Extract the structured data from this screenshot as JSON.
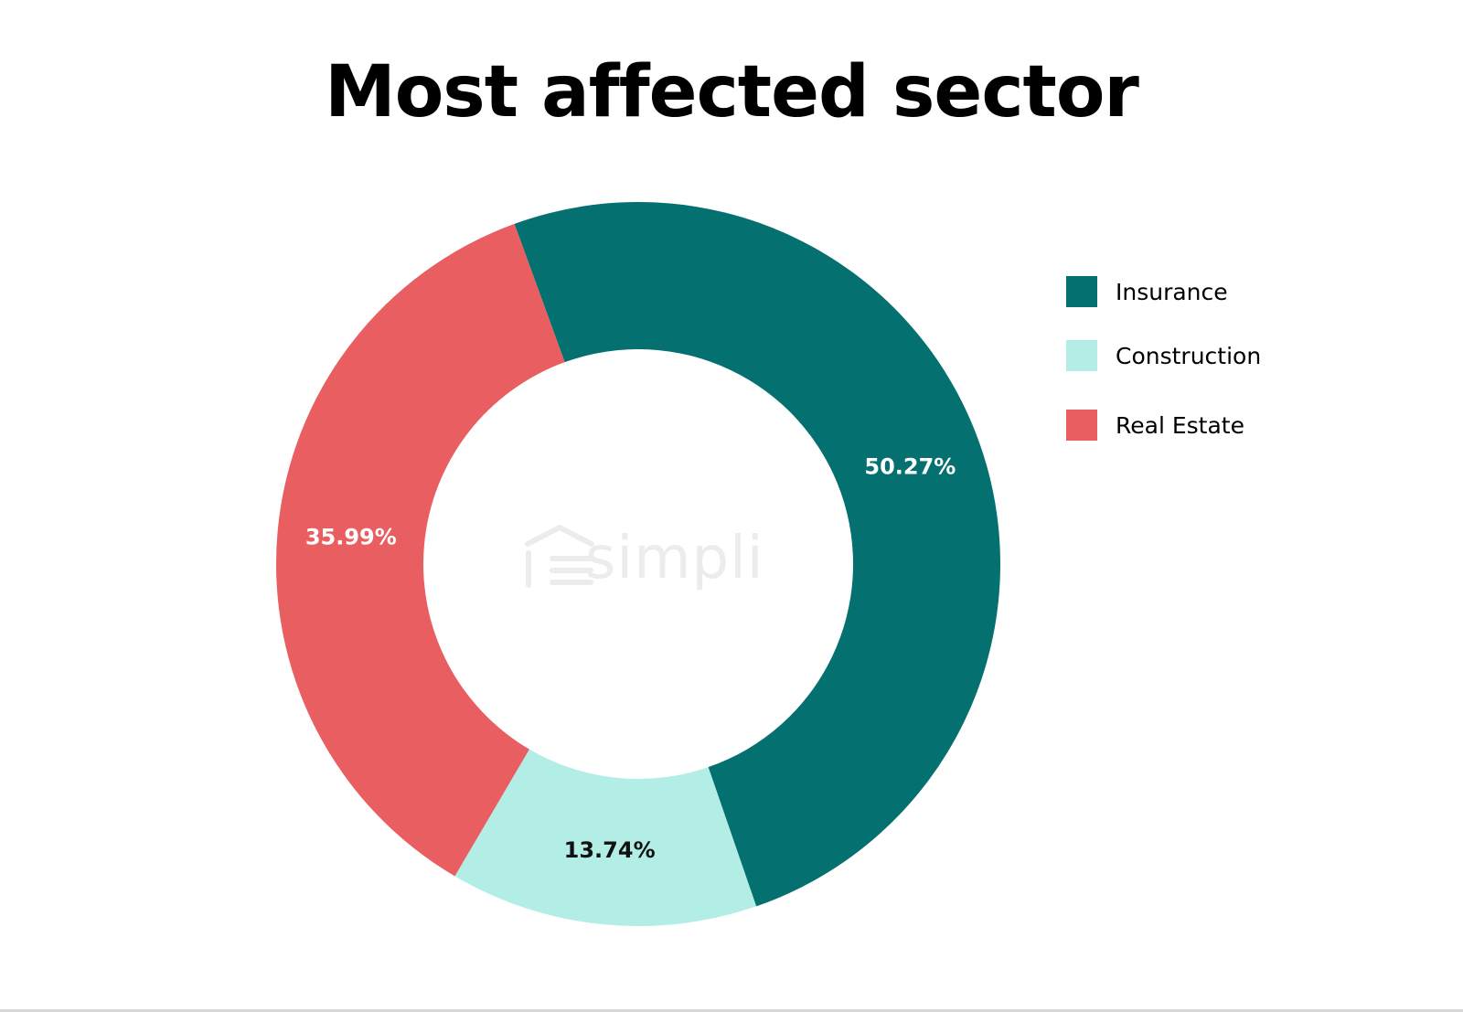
{
  "watermark": {
    "text": "simpli"
  },
  "chart_data": {
    "type": "pie",
    "variant": "donut",
    "title": "Most affected sector",
    "categories": [
      "Insurance",
      "Construction",
      "Real Estate"
    ],
    "values": [
      50.27,
      13.74,
      35.99
    ],
    "labels": [
      "50.27%",
      "13.74%",
      "35.99%"
    ],
    "colors": [
      "#047170",
      "#b2ede6",
      "#e85e61"
    ],
    "label_colors": [
      "#ffffff",
      "#111111",
      "#ffffff"
    ],
    "legend": "right"
  }
}
